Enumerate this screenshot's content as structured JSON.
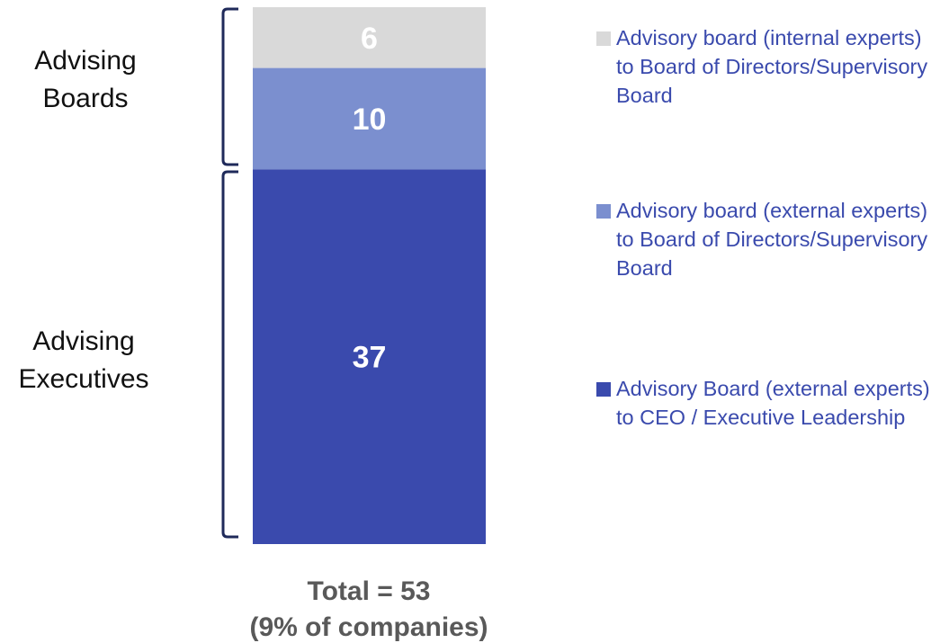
{
  "chart_data": {
    "type": "bar",
    "stacked": true,
    "categories": [
      null
    ],
    "series": [
      {
        "name": "Advisory board (internal experts) to Board of Directors/Supervisory Board",
        "color": "#d9d9d9",
        "values": [
          6
        ]
      },
      {
        "name": "Advisory board (external experts) to Board of Directors/Supervisory Board",
        "color": "#7b8fcf",
        "values": [
          10
        ]
      },
      {
        "name": "Advisory Board (external experts) to CEO / Executive Leadership",
        "color": "#3a4aad",
        "values": [
          37
        ]
      }
    ],
    "annotations": [
      "Advising Boards",
      "Advising Executives",
      "Total = 53",
      "(9% of companies)"
    ]
  }
}
